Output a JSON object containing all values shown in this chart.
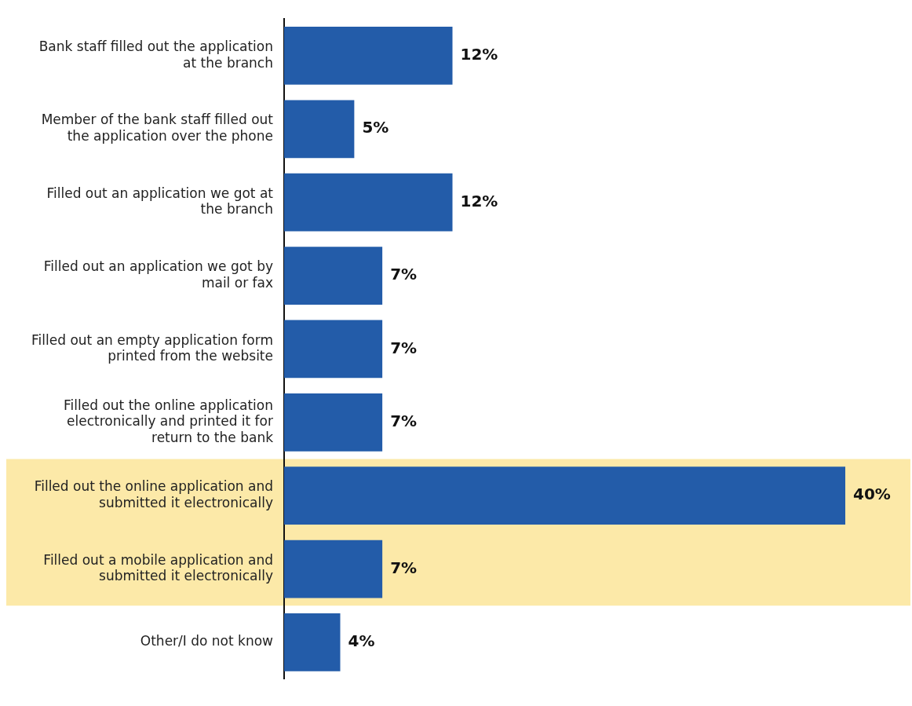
{
  "chart_data": {
    "type": "bar",
    "orientation": "horizontal",
    "categories": [
      "Bank staff filled out the application at the branch",
      "Member of the bank staff filled out the application over the phone",
      "Filled out an application we got at the branch",
      "Filled out an application we got by mail or fax",
      "Filled out an empty application form printed from the website",
      "Filled out the online application electronically and printed it for return to the bank",
      "Filled out the online application and submitted it electronically",
      "Filled out a mobile application and submitted it electronically",
      "Other/I do not know"
    ],
    "values": [
      12,
      5,
      12,
      7,
      7,
      7,
      40,
      7,
      4
    ],
    "value_labels": [
      "12%",
      "5%",
      "12%",
      "7%",
      "7%",
      "7%",
      "40%",
      "7%",
      "4%"
    ],
    "color": "#235ca9",
    "bands": [
      {
        "axis": "y",
        "from": "Filled out the online application and submitted it electronically",
        "to": "Filled out a mobile application and submitted it electronically",
        "color": "#fce9a8"
      }
    ],
    "grid": false,
    "legend": false,
    "tick_labels": "y"
  }
}
